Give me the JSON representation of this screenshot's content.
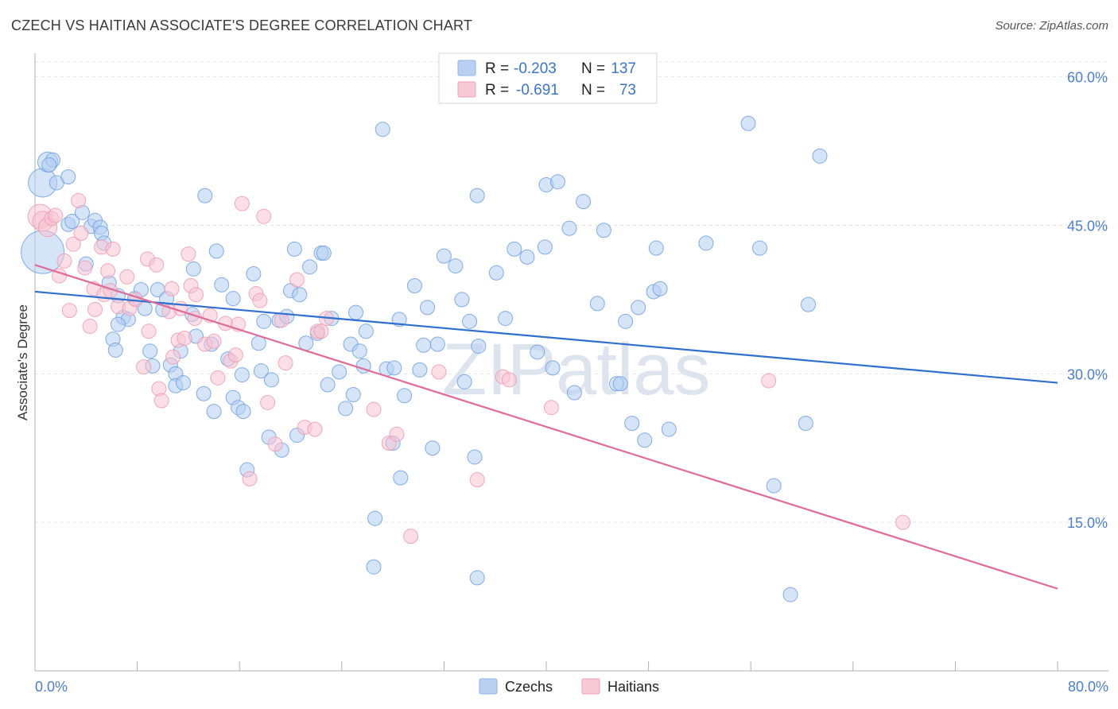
{
  "title": "CZECH VS HAITIAN ASSOCIATE'S DEGREE CORRELATION CHART",
  "source": "Source: ZipAtlas.com",
  "watermark": "ZIPatlas",
  "legend": {
    "rows": [
      {
        "r_label": "R =",
        "r_value": "-0.203",
        "n_label": "N =",
        "n_value": "137",
        "color": "#8fb4ea",
        "fill": "#b9d0f3"
      },
      {
        "r_label": "R =",
        "r_value": "-0.691",
        "n_label": "N =",
        "n_value": "73",
        "color": "#f0a0b8",
        "fill": "#f8c9d7"
      }
    ]
  },
  "chart_data": {
    "type": "scatter",
    "title": "CZECH VS HAITIAN ASSOCIATE'S DEGREE CORRELATION CHART",
    "xlabel": "",
    "ylabel": "Associate's Degree",
    "xlim": [
      0,
      80
    ],
    "ylim": [
      0,
      61.5
    ],
    "x_tick_labels": [
      "0.0%",
      "80.0%"
    ],
    "y_ticks": [
      15,
      30,
      45,
      60
    ],
    "y_tick_labels": [
      "15.0%",
      "30.0%",
      "45.0%",
      "60.0%"
    ],
    "grid": true,
    "legend_position": "top-center",
    "series": [
      {
        "name": "Czechs",
        "color": "#6f9fe0",
        "fill": "#b4cdf2",
        "trend": {
          "x": [
            0,
            80
          ],
          "y": [
            38.3,
            29.1
          ],
          "color": "#2e6fd0"
        },
        "points": [
          [
            0.6,
            42.3,
            3
          ],
          [
            0.6,
            49.3,
            2
          ],
          [
            1.0,
            51.4,
            1.4
          ],
          [
            1.4,
            51.6,
            1
          ],
          [
            1.1,
            51.1,
            1
          ],
          [
            1.7,
            49.3,
            1
          ],
          [
            2.6,
            49.9,
            1
          ],
          [
            2.6,
            45.1,
            1
          ],
          [
            2.9,
            45.4,
            1
          ],
          [
            3.7,
            46.3,
            1
          ],
          [
            4.4,
            44.9,
            1
          ],
          [
            4.7,
            45.5,
            1
          ],
          [
            5.1,
            44.8,
            1
          ],
          [
            5.2,
            44.2,
            1
          ],
          [
            5.4,
            43.2,
            1
          ],
          [
            4.0,
            41.1,
            1
          ],
          [
            5.8,
            39.2,
            1
          ],
          [
            6.5,
            37.9,
            1
          ],
          [
            6.9,
            35.7,
            1
          ],
          [
            7.3,
            35.5,
            1
          ],
          [
            6.5,
            35.0,
            1
          ],
          [
            6.1,
            33.5,
            1
          ],
          [
            6.3,
            32.4,
            1
          ],
          [
            7.8,
            37.6,
            1
          ],
          [
            8.3,
            38.5,
            1
          ],
          [
            8.6,
            36.6,
            1
          ],
          [
            9.6,
            38.5,
            1
          ],
          [
            10.3,
            37.6,
            1
          ],
          [
            9.0,
            32.3,
            1
          ],
          [
            9.2,
            30.8,
            1
          ],
          [
            10.6,
            30.9,
            1
          ],
          [
            11.0,
            30.0,
            1
          ],
          [
            11.4,
            32.3,
            1
          ],
          [
            11.0,
            28.8,
            1
          ],
          [
            11.6,
            29.1,
            1
          ],
          [
            10.0,
            36.5,
            1
          ],
          [
            12.3,
            36.0,
            1
          ],
          [
            12.4,
            40.6,
            1
          ],
          [
            12.6,
            33.8,
            1
          ],
          [
            13.2,
            28.0,
            1
          ],
          [
            13.3,
            48.0,
            1
          ],
          [
            13.8,
            33.0,
            1
          ],
          [
            14.0,
            26.2,
            1
          ],
          [
            14.2,
            42.4,
            1
          ],
          [
            14.6,
            39.0,
            1
          ],
          [
            15.1,
            31.5,
            1
          ],
          [
            15.5,
            27.6,
            1
          ],
          [
            15.5,
            37.6,
            1
          ],
          [
            15.9,
            26.6,
            1
          ],
          [
            16.3,
            26.2,
            1
          ],
          [
            16.2,
            29.9,
            1
          ],
          [
            16.6,
            20.3,
            1
          ],
          [
            17.1,
            40.1,
            1
          ],
          [
            17.5,
            33.1,
            1
          ],
          [
            17.7,
            30.3,
            1
          ],
          [
            17.9,
            35.3,
            1
          ],
          [
            18.5,
            29.4,
            1
          ],
          [
            18.3,
            23.6,
            1
          ],
          [
            19.1,
            35.4,
            1
          ],
          [
            19.3,
            22.3,
            1
          ],
          [
            19.7,
            35.8,
            1
          ],
          [
            20.0,
            38.4,
            1
          ],
          [
            20.3,
            42.6,
            1
          ],
          [
            20.5,
            23.8,
            1
          ],
          [
            20.7,
            38.0,
            1
          ],
          [
            21.2,
            33.1,
            1
          ],
          [
            21.5,
            40.8,
            1
          ],
          [
            22.1,
            34.1,
            1
          ],
          [
            22.4,
            42.2,
            1
          ],
          [
            22.6,
            42.2,
            1
          ],
          [
            23.2,
            35.6,
            1
          ],
          [
            23.8,
            30.2,
            1
          ],
          [
            22.9,
            28.9,
            1
          ],
          [
            24.3,
            26.5,
            1
          ],
          [
            24.7,
            33.0,
            1
          ],
          [
            24.9,
            27.9,
            1
          ],
          [
            25.1,
            36.2,
            1
          ],
          [
            25.4,
            32.3,
            1
          ],
          [
            25.7,
            30.8,
            1
          ],
          [
            25.9,
            34.3,
            1
          ],
          [
            27.2,
            54.7,
            1
          ],
          [
            27.5,
            30.5,
            1
          ],
          [
            28.0,
            23.0,
            1
          ],
          [
            28.1,
            30.6,
            1
          ],
          [
            28.5,
            35.5,
            1
          ],
          [
            28.9,
            27.8,
            1
          ],
          [
            28.6,
            19.5,
            1
          ],
          [
            26.6,
            15.4,
            1
          ],
          [
            26.5,
            10.5,
            1
          ],
          [
            29.7,
            38.9,
            1
          ],
          [
            30.1,
            30.4,
            1
          ],
          [
            30.4,
            32.9,
            1
          ],
          [
            30.7,
            36.7,
            1
          ],
          [
            31.1,
            22.5,
            1
          ],
          [
            31.5,
            33.0,
            1
          ],
          [
            32.0,
            41.9,
            1
          ],
          [
            32.9,
            40.9,
            1
          ],
          [
            33.4,
            37.5,
            1
          ],
          [
            33.6,
            29.2,
            1
          ],
          [
            34.0,
            35.3,
            1
          ],
          [
            34.4,
            21.6,
            1
          ],
          [
            34.6,
            48.0,
            1
          ],
          [
            34.6,
            9.4,
            1
          ],
          [
            34.7,
            32.8,
            1
          ],
          [
            36.1,
            40.2,
            1
          ],
          [
            36.8,
            35.6,
            1
          ],
          [
            37.5,
            42.6,
            1
          ],
          [
            38.5,
            41.8,
            1
          ],
          [
            39.3,
            32.2,
            1
          ],
          [
            40.0,
            49.1,
            1
          ],
          [
            40.5,
            30.6,
            1
          ],
          [
            39.9,
            42.8,
            1
          ],
          [
            40.9,
            49.4,
            1
          ],
          [
            41.8,
            44.7,
            1
          ],
          [
            42.2,
            28.1,
            1
          ],
          [
            42.9,
            47.4,
            1
          ],
          [
            44.0,
            37.1,
            1
          ],
          [
            44.5,
            44.5,
            1
          ],
          [
            45.5,
            29.0,
            1
          ],
          [
            45.8,
            29.0,
            1
          ],
          [
            46.2,
            35.3,
            1
          ],
          [
            46.7,
            25.0,
            1
          ],
          [
            47.2,
            36.7,
            1
          ],
          [
            47.7,
            23.3,
            1
          ],
          [
            48.4,
            38.3,
            1
          ],
          [
            48.6,
            42.7,
            1
          ],
          [
            48.9,
            38.6,
            1
          ],
          [
            49.6,
            24.4,
            1
          ],
          [
            52.5,
            43.2,
            1
          ],
          [
            55.8,
            55.3,
            1
          ],
          [
            56.7,
            42.7,
            1
          ],
          [
            57.8,
            18.7,
            1
          ],
          [
            59.1,
            7.7,
            1
          ],
          [
            60.3,
            25.0,
            1
          ],
          [
            60.5,
            37.0,
            1
          ],
          [
            61.4,
            52.0,
            1
          ]
        ]
      },
      {
        "name": "Haitians",
        "color": "#ee9ab2",
        "fill": "#f7c3d2",
        "trend": {
          "x": [
            0,
            80
          ],
          "y": [
            41.0,
            8.3
          ],
          "color": "#e06b96"
        },
        "points": [
          [
            0.4,
            45.9,
            1.7
          ],
          [
            0.6,
            45.4,
            1.4
          ],
          [
            1.0,
            44.8,
            1.3
          ],
          [
            1.3,
            45.7,
            1
          ],
          [
            1.6,
            46.0,
            1
          ],
          [
            2.3,
            41.4,
            1
          ],
          [
            1.9,
            39.9,
            1
          ],
          [
            2.7,
            36.4,
            1
          ],
          [
            3.0,
            43.1,
            1
          ],
          [
            3.4,
            47.5,
            1
          ],
          [
            3.6,
            44.2,
            1
          ],
          [
            3.9,
            40.7,
            1
          ],
          [
            4.6,
            38.6,
            1
          ],
          [
            4.7,
            36.5,
            1
          ],
          [
            4.3,
            34.8,
            1
          ],
          [
            5.2,
            42.8,
            1
          ],
          [
            5.4,
            38.0,
            1
          ],
          [
            5.7,
            40.4,
            1
          ],
          [
            5.9,
            38.4,
            1
          ],
          [
            6.1,
            42.6,
            1
          ],
          [
            6.5,
            36.8,
            1
          ],
          [
            7.2,
            39.8,
            1
          ],
          [
            7.4,
            36.6,
            1
          ],
          [
            7.9,
            37.5,
            1
          ],
          [
            8.5,
            30.7,
            1
          ],
          [
            8.8,
            41.6,
            1
          ],
          [
            8.9,
            34.3,
            1
          ],
          [
            9.5,
            41.0,
            1
          ],
          [
            9.7,
            28.5,
            1
          ],
          [
            9.9,
            27.3,
            1
          ],
          [
            10.5,
            36.3,
            1
          ],
          [
            10.7,
            38.6,
            1
          ],
          [
            10.8,
            31.7,
            1
          ],
          [
            11.2,
            33.4,
            1
          ],
          [
            11.4,
            36.6,
            1
          ],
          [
            11.7,
            33.6,
            1
          ],
          [
            12.0,
            42.1,
            1
          ],
          [
            12.2,
            38.9,
            1
          ],
          [
            12.6,
            38.0,
            1
          ],
          [
            12.5,
            35.6,
            1
          ],
          [
            13.3,
            33.0,
            1
          ],
          [
            13.7,
            35.9,
            1
          ],
          [
            14.0,
            33.3,
            1
          ],
          [
            14.3,
            29.6,
            1
          ],
          [
            14.9,
            35.1,
            1
          ],
          [
            15.3,
            31.3,
            1
          ],
          [
            15.7,
            31.9,
            1
          ],
          [
            15.9,
            35.0,
            1
          ],
          [
            16.2,
            47.2,
            1
          ],
          [
            16.8,
            19.4,
            1
          ],
          [
            17.3,
            38.1,
            1
          ],
          [
            17.6,
            37.4,
            1
          ],
          [
            17.9,
            45.9,
            1
          ],
          [
            18.2,
            27.1,
            1
          ],
          [
            18.8,
            22.9,
            1
          ],
          [
            19.3,
            35.4,
            1
          ],
          [
            19.6,
            31.1,
            1
          ],
          [
            20.5,
            39.5,
            1
          ],
          [
            21.1,
            24.6,
            1
          ],
          [
            21.9,
            24.4,
            1
          ],
          [
            22.1,
            34.3,
            1
          ],
          [
            22.4,
            34.3,
            1
          ],
          [
            22.8,
            35.6,
            1
          ],
          [
            26.5,
            26.4,
            1
          ],
          [
            27.7,
            23.0,
            1
          ],
          [
            28.3,
            23.9,
            1
          ],
          [
            29.4,
            13.6,
            1
          ],
          [
            31.6,
            30.2,
            1
          ],
          [
            34.6,
            19.3,
            1
          ],
          [
            36.6,
            29.7,
            1
          ],
          [
            37.1,
            29.4,
            1
          ],
          [
            40.4,
            26.6,
            1
          ],
          [
            57.4,
            29.3,
            1
          ],
          [
            67.9,
            15.0,
            1
          ]
        ]
      }
    ]
  }
}
